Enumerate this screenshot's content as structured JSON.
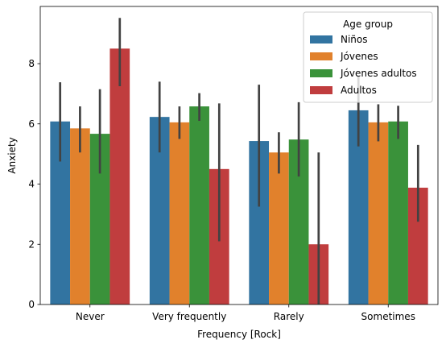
{
  "chart_data": {
    "type": "bar",
    "xlabel": "Frequency [Rock]",
    "ylabel": "Anxiety",
    "categories": [
      "Never",
      "Very frequently",
      "Rarely",
      "Sometimes"
    ],
    "ylim": [
      0,
      9.9
    ],
    "yticks": [
      0,
      2,
      4,
      6,
      8
    ],
    "grid": false,
    "legend": {
      "title": "Age group",
      "position": "top-right"
    },
    "series": [
      {
        "name": "Niños",
        "color": "#3274a1",
        "values": [
          6.08,
          6.23,
          5.43,
          6.45
        ],
        "ci": [
          [
            4.75,
            7.38
          ],
          [
            5.05,
            7.4
          ],
          [
            3.25,
            7.3
          ],
          [
            5.25,
            7.6
          ]
        ]
      },
      {
        "name": "Jóvenes",
        "color": "#e1812c",
        "values": [
          5.85,
          6.05,
          5.05,
          6.05
        ],
        "ci": [
          [
            5.05,
            6.58
          ],
          [
            5.5,
            6.58
          ],
          [
            4.35,
            5.72
          ],
          [
            5.42,
            6.65
          ]
        ]
      },
      {
        "name": "Jóvenes adultos",
        "color": "#3a923a",
        "values": [
          5.67,
          6.58,
          5.48,
          6.08
        ],
        "ci": [
          [
            4.35,
            7.15
          ],
          [
            6.1,
            7.02
          ],
          [
            4.25,
            6.72
          ],
          [
            5.5,
            6.6
          ]
        ]
      },
      {
        "name": "Adultos",
        "color": "#c03d3e",
        "values": [
          8.5,
          4.5,
          2.0,
          3.88
        ],
        "ci": [
          [
            7.25,
            9.52
          ],
          [
            2.1,
            6.68
          ],
          [
            0.0,
            5.05
          ],
          [
            2.75,
            5.3
          ]
        ]
      }
    ]
  }
}
